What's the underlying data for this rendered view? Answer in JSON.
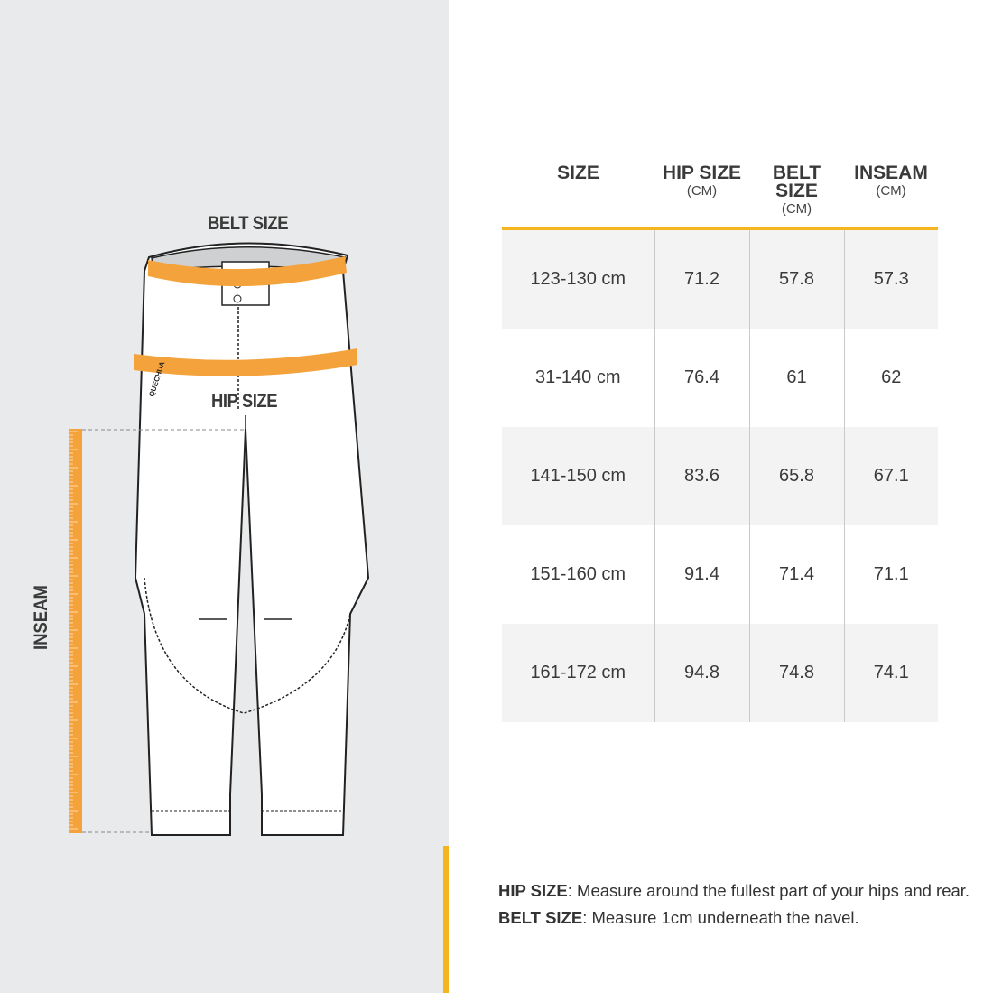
{
  "illustration": {
    "belt_label": "BELT SIZE",
    "hip_label": "HIP SIZE",
    "inseam_label": "INSEAM",
    "brand_text": "QUECHUA",
    "colors": {
      "panel": "#e9eaeb",
      "tape": "#f4a23c",
      "accent": "#f5b51f"
    }
  },
  "table": {
    "headers": [
      {
        "label": "SIZE",
        "unit": ""
      },
      {
        "label": "HIP SIZE",
        "unit": "(CM)"
      },
      {
        "label": "BELT SIZE",
        "unit": "(CM)"
      },
      {
        "label": "INSEAM",
        "unit": "(CM)"
      }
    ],
    "rows": [
      [
        "123-130 cm",
        "71.2",
        "57.8",
        "57.3"
      ],
      [
        "31-140 cm",
        "76.4",
        "61",
        "62"
      ],
      [
        "141-150 cm",
        "83.6",
        "65.8",
        "67.1"
      ],
      [
        "151-160 cm",
        "91.4",
        "71.4",
        "71.1"
      ],
      [
        "161-172 cm",
        "94.8",
        "74.8",
        "74.1"
      ]
    ]
  },
  "notes": [
    {
      "term": "HIP SIZE",
      "text": ": Measure around the fullest part of your hips and rear."
    },
    {
      "term": "BELT SIZE",
      "text": ": Measure 1cm underneath the navel."
    }
  ]
}
